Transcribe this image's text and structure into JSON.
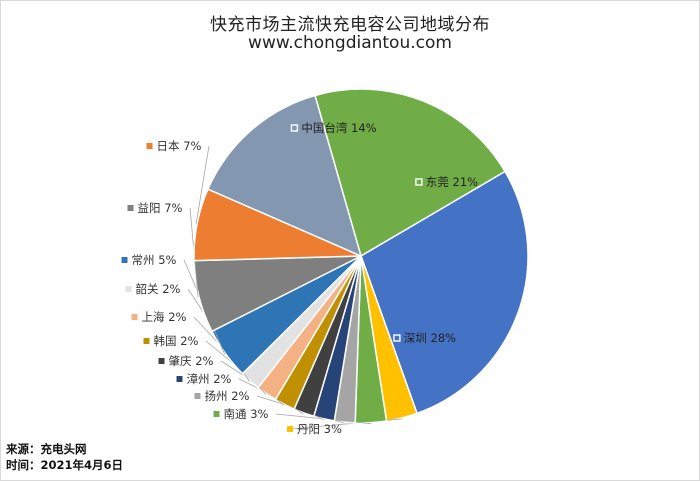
{
  "chart_data": {
    "type": "pie",
    "title": "快充市场主流快充电容公司地域分布",
    "subtitle": "www.chongdiantou.com",
    "unit": "%",
    "slices": [
      {
        "name": "东莞",
        "value": 21,
        "color": "#70ad47"
      },
      {
        "name": "深圳",
        "value": 28,
        "color": "#4472c4"
      },
      {
        "name": "丹阳",
        "value": 3,
        "color": "#ffc000"
      },
      {
        "name": "南通",
        "value": 3,
        "color": "#70ad47"
      },
      {
        "name": "扬州",
        "value": 2,
        "color": "#a5a5a5"
      },
      {
        "name": "漳州",
        "value": 2,
        "color": "#264478"
      },
      {
        "name": "肇庆",
        "value": 2,
        "color": "#404040"
      },
      {
        "name": "韩国",
        "value": 2,
        "color": "#bf9000"
      },
      {
        "name": "上海",
        "value": 2,
        "color": "#f4b183"
      },
      {
        "name": "韶关",
        "value": 2,
        "color": "#e2e2e2"
      },
      {
        "name": "常州",
        "value": 5,
        "color": "#2e75b6"
      },
      {
        "name": "益阳",
        "value": 7,
        "color": "#7f7f7f"
      },
      {
        "name": "日本",
        "value": 7,
        "color": "#ed7d31"
      },
      {
        "name": "中国台湾",
        "value": 14,
        "color": "#8497b0"
      }
    ]
  },
  "footer": {
    "source": "来源：充电头网",
    "date": "时间：2021年4月6日"
  }
}
